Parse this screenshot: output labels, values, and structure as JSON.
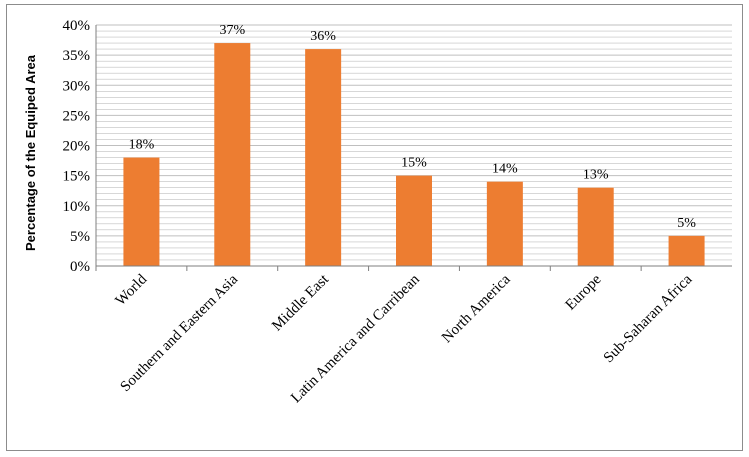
{
  "chart_data": {
    "type": "bar",
    "title": "",
    "xlabel": "",
    "ylabel": "Percentage of the Equiped Area",
    "categories": [
      "World",
      "Southern and Eastern Asia",
      "Middle East",
      "Latin America and Carribean",
      "North America",
      "Europe",
      "Sub-Saharan Africa"
    ],
    "values": [
      18,
      37,
      36,
      15,
      14,
      13,
      5
    ],
    "data_labels": [
      "18%",
      "37%",
      "36%",
      "15%",
      "14%",
      "13%",
      "5%"
    ],
    "ylim": [
      0,
      40
    ],
    "yticks": [
      "0%",
      "5%",
      "10%",
      "15%",
      "20%",
      "25%",
      "30%",
      "35%",
      "40%"
    ],
    "grid": true,
    "legend": "none",
    "bar_color": "#ED7D31",
    "grid_color": "#BFBFBF"
  }
}
